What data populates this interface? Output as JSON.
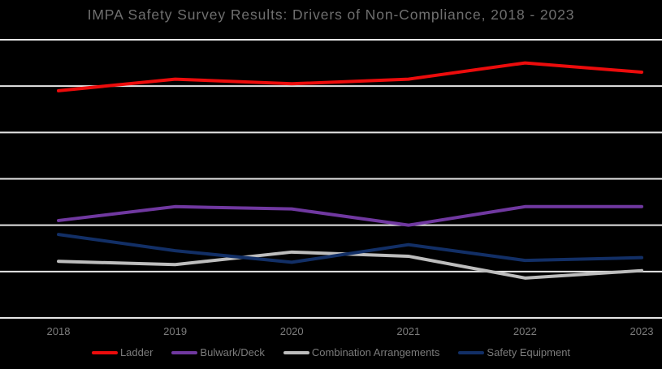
{
  "title": "IMPA Safety Survey Results: Drivers of Non-Compliance, 2018 - 2023",
  "colors": {
    "background": "#000000",
    "gridline": "#e6e6e6",
    "title_text": "#6f6f6f",
    "axis_label_text": "#7c7c7c",
    "legend_text": "#7c7c7c"
  },
  "chart_data": {
    "type": "line",
    "title": "IMPA Safety Survey Results: Drivers of Non-Compliance, 2018 - 2023",
    "categories": [
      "2018",
      "2019",
      "2020",
      "2021",
      "2022",
      "2023"
    ],
    "series": [
      {
        "name": "Ladder",
        "color": "#ec0c0c",
        "values": [
          49,
          51.5,
          50.5,
          51.5,
          55,
          53
        ]
      },
      {
        "name": "Bulwark/Deck",
        "color": "#7038a0",
        "values": [
          21,
          24,
          23.5,
          20,
          24,
          24
        ]
      },
      {
        "name": "Combination Arrangements",
        "color": "#bdbdbd",
        "values": [
          12.2,
          11.5,
          14.2,
          13.3,
          8.6,
          10.2
        ]
      },
      {
        "name": "Safety Equipment",
        "color": "#122f66",
        "values": [
          18,
          14.5,
          12,
          15.8,
          12.4,
          13
        ]
      }
    ],
    "xlabel": "",
    "ylabel": "",
    "ylim": [
      0,
      60
    ],
    "y_gridline_step": 10,
    "y_tick_labels_visible": false,
    "grid": "horizontal",
    "legend_position": "bottom"
  }
}
